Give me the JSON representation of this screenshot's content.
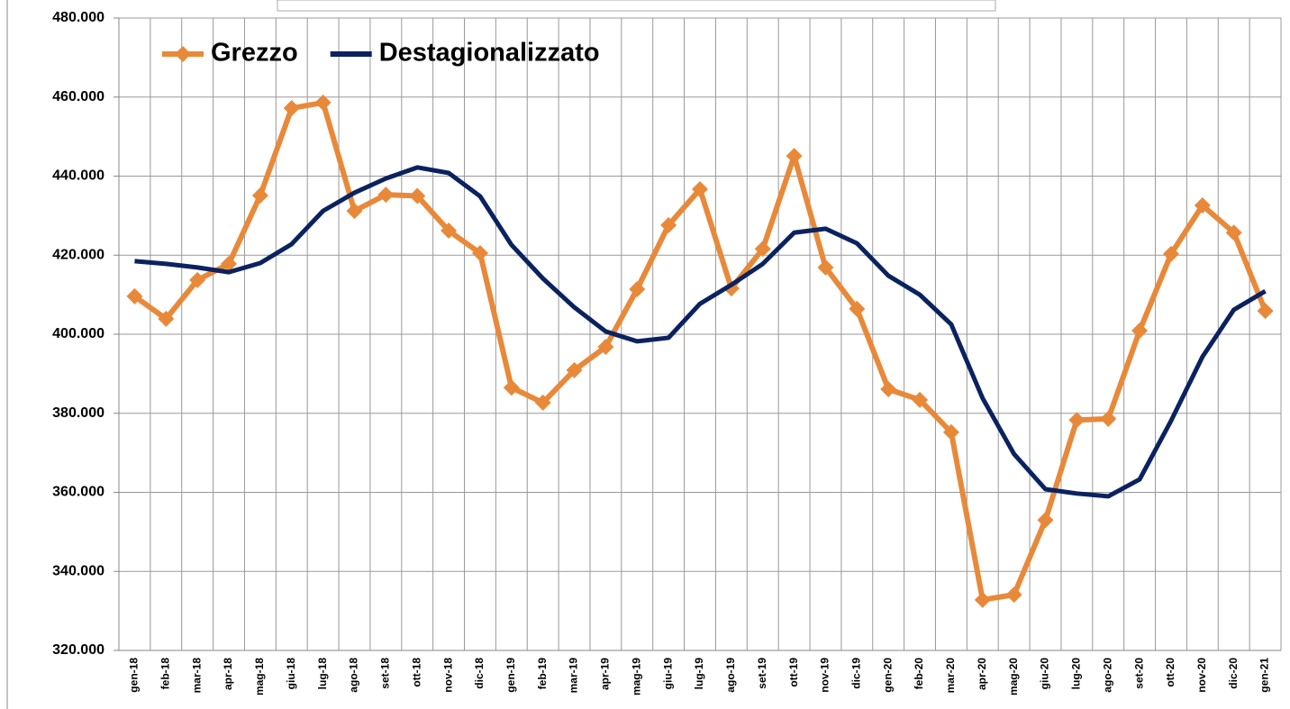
{
  "chart_data": {
    "type": "line",
    "categories": [
      "gen-18",
      "feb-18",
      "mar-18",
      "apr-18",
      "mag-18",
      "giu-18",
      "lug-18",
      "ago-18",
      "set-18",
      "ott-18",
      "nov-18",
      "dic-18",
      "gen-19",
      "feb-19",
      "mar-19",
      "apr-19",
      "mag-19",
      "giu-19",
      "lug-19",
      "ago-19",
      "set-19",
      "ott-19",
      "nov-19",
      "dic-19",
      "gen-20",
      "feb-20",
      "mar-20",
      "apr-20",
      "mag-20",
      "giu-20",
      "lug-20",
      "ago-20",
      "set-20",
      "ott-20",
      "nov-20",
      "dic-20",
      "gen-21"
    ],
    "series": [
      {
        "name": "Grezzo",
        "color": "#e8893a",
        "marker": true,
        "values": [
          409600,
          403900,
          413700,
          417800,
          435100,
          457200,
          458600,
          431200,
          435300,
          435000,
          426200,
          420500,
          386500,
          382700,
          390900,
          396800,
          411400,
          427600,
          436700,
          411600,
          421600,
          445100,
          416900,
          406400,
          386100,
          383400,
          375200,
          332800,
          334100,
          353000,
          378300,
          378600,
          400900,
          420300,
          432600,
          425700,
          405900
        ]
      },
      {
        "name": "Destagionalizzato",
        "color": "#0b2260",
        "marker": false,
        "values": [
          418500,
          417800,
          416900,
          415700,
          418000,
          422800,
          431200,
          435800,
          439400,
          442200,
          440800,
          434900,
          422600,
          414100,
          406800,
          400700,
          398200,
          399100,
          407700,
          412500,
          417800,
          425700,
          426700,
          423000,
          414800,
          410000,
          402500,
          383800,
          369700,
          360800,
          359700,
          359000,
          363300,
          378100,
          394300,
          406200,
          410900
        ]
      }
    ],
    "ylim": [
      320000,
      480000
    ],
    "yticks": [
      {
        "value": 320000,
        "label": "320.000"
      },
      {
        "value": 340000,
        "label": "340.000"
      },
      {
        "value": 360000,
        "label": "360.000"
      },
      {
        "value": 380000,
        "label": "380.000"
      },
      {
        "value": 400000,
        "label": "400.000"
      },
      {
        "value": 420000,
        "label": "420.000"
      },
      {
        "value": 440000,
        "label": "440.000"
      },
      {
        "value": 460000,
        "label": "460.000"
      },
      {
        "value": 480000,
        "label": "480.000"
      }
    ],
    "grid": true,
    "legend": "top-left"
  }
}
